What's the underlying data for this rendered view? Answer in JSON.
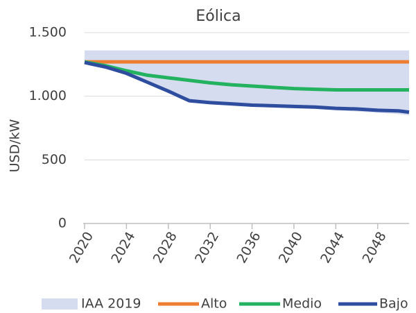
{
  "chart_data": {
    "type": "line",
    "title": "Eólica",
    "ylabel": "USD/kW",
    "x": [
      2020,
      2022,
      2024,
      2026,
      2028,
      2030,
      2032,
      2034,
      2036,
      2038,
      2040,
      2042,
      2044,
      2046,
      2048,
      2050,
      2051
    ],
    "xlim": [
      2020,
      2051
    ],
    "xticks": [
      2020,
      2024,
      2028,
      2032,
      2036,
      2040,
      2044,
      2048
    ],
    "ylim": [
      0,
      1500
    ],
    "yticks": [
      0,
      500,
      {
        "value": 1000,
        "label": "1.000"
      },
      {
        "value": 1500,
        "label": "1.500"
      }
    ],
    "grid": true,
    "legend": "bottom",
    "series": [
      {
        "name": "IAA 2019",
        "color": "#d6dcef",
        "type": "band",
        "upper": [
          1360,
          1360,
          1360,
          1360,
          1360,
          1360,
          1360,
          1360,
          1360,
          1360,
          1360,
          1360,
          1360,
          1360,
          1360,
          1360,
          1360
        ],
        "lower": [
          1265,
          1220,
          1170,
          1100,
          1030,
          960,
          940,
          930,
          920,
          910,
          905,
          900,
          890,
          880,
          870,
          860,
          850
        ]
      },
      {
        "name": "Alto",
        "color": "#ed7d31",
        "values": [
          1270,
          1270,
          1270,
          1270,
          1270,
          1270,
          1270,
          1270,
          1270,
          1270,
          1270,
          1270,
          1270,
          1270,
          1270,
          1270,
          1270
        ]
      },
      {
        "name": "Medio",
        "color": "#23b25f",
        "values": [
          1270,
          1240,
          1200,
          1165,
          1145,
          1125,
          1105,
          1090,
          1080,
          1070,
          1060,
          1055,
          1050,
          1050,
          1050,
          1050,
          1050
        ]
      },
      {
        "name": "Bajo",
        "color": "#2e4d9e",
        "values": [
          1265,
          1230,
          1180,
          1110,
          1040,
          965,
          950,
          940,
          930,
          925,
          920,
          915,
          905,
          900,
          890,
          885,
          875
        ]
      }
    ]
  }
}
